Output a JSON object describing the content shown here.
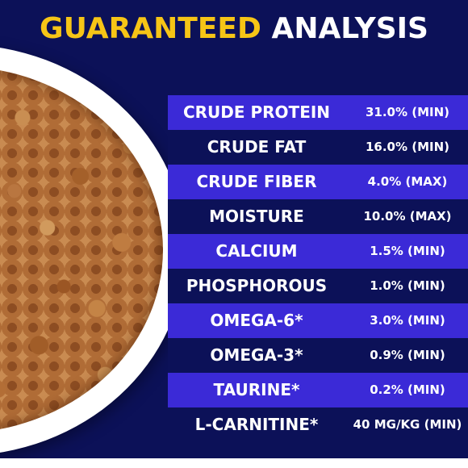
{
  "title": {
    "word1": "GUARANTEED",
    "word2": "ANALYSIS"
  },
  "colors": {
    "accent": "#f6c516",
    "band": "#3b2ad7",
    "background": "#0c1158",
    "text": "#ffffff"
  },
  "rows": [
    {
      "name": "CRUDE PROTEIN",
      "value": "31.0% (MIN)"
    },
    {
      "name": "CRUDE FAT",
      "value": "16.0% (MIN)"
    },
    {
      "name": "CRUDE FIBER",
      "value": "4.0% (MAX)"
    },
    {
      "name": "MOISTURE",
      "value": "10.0% (MAX)"
    },
    {
      "name": "CALCIUM",
      "value": "1.5% (MIN)"
    },
    {
      "name": "PHOSPHOROUS",
      "value": "1.0% (MIN)"
    },
    {
      "name": "OMEGA-6*",
      "value": "3.0% (MIN)"
    },
    {
      "name": "OMEGA-3*",
      "value": "0.9% (MIN)"
    },
    {
      "name": "TAURINE*",
      "value": "0.2% (MIN)"
    },
    {
      "name": "L-CARNITINE*",
      "value": "40 MG/KG (MIN)"
    }
  ]
}
